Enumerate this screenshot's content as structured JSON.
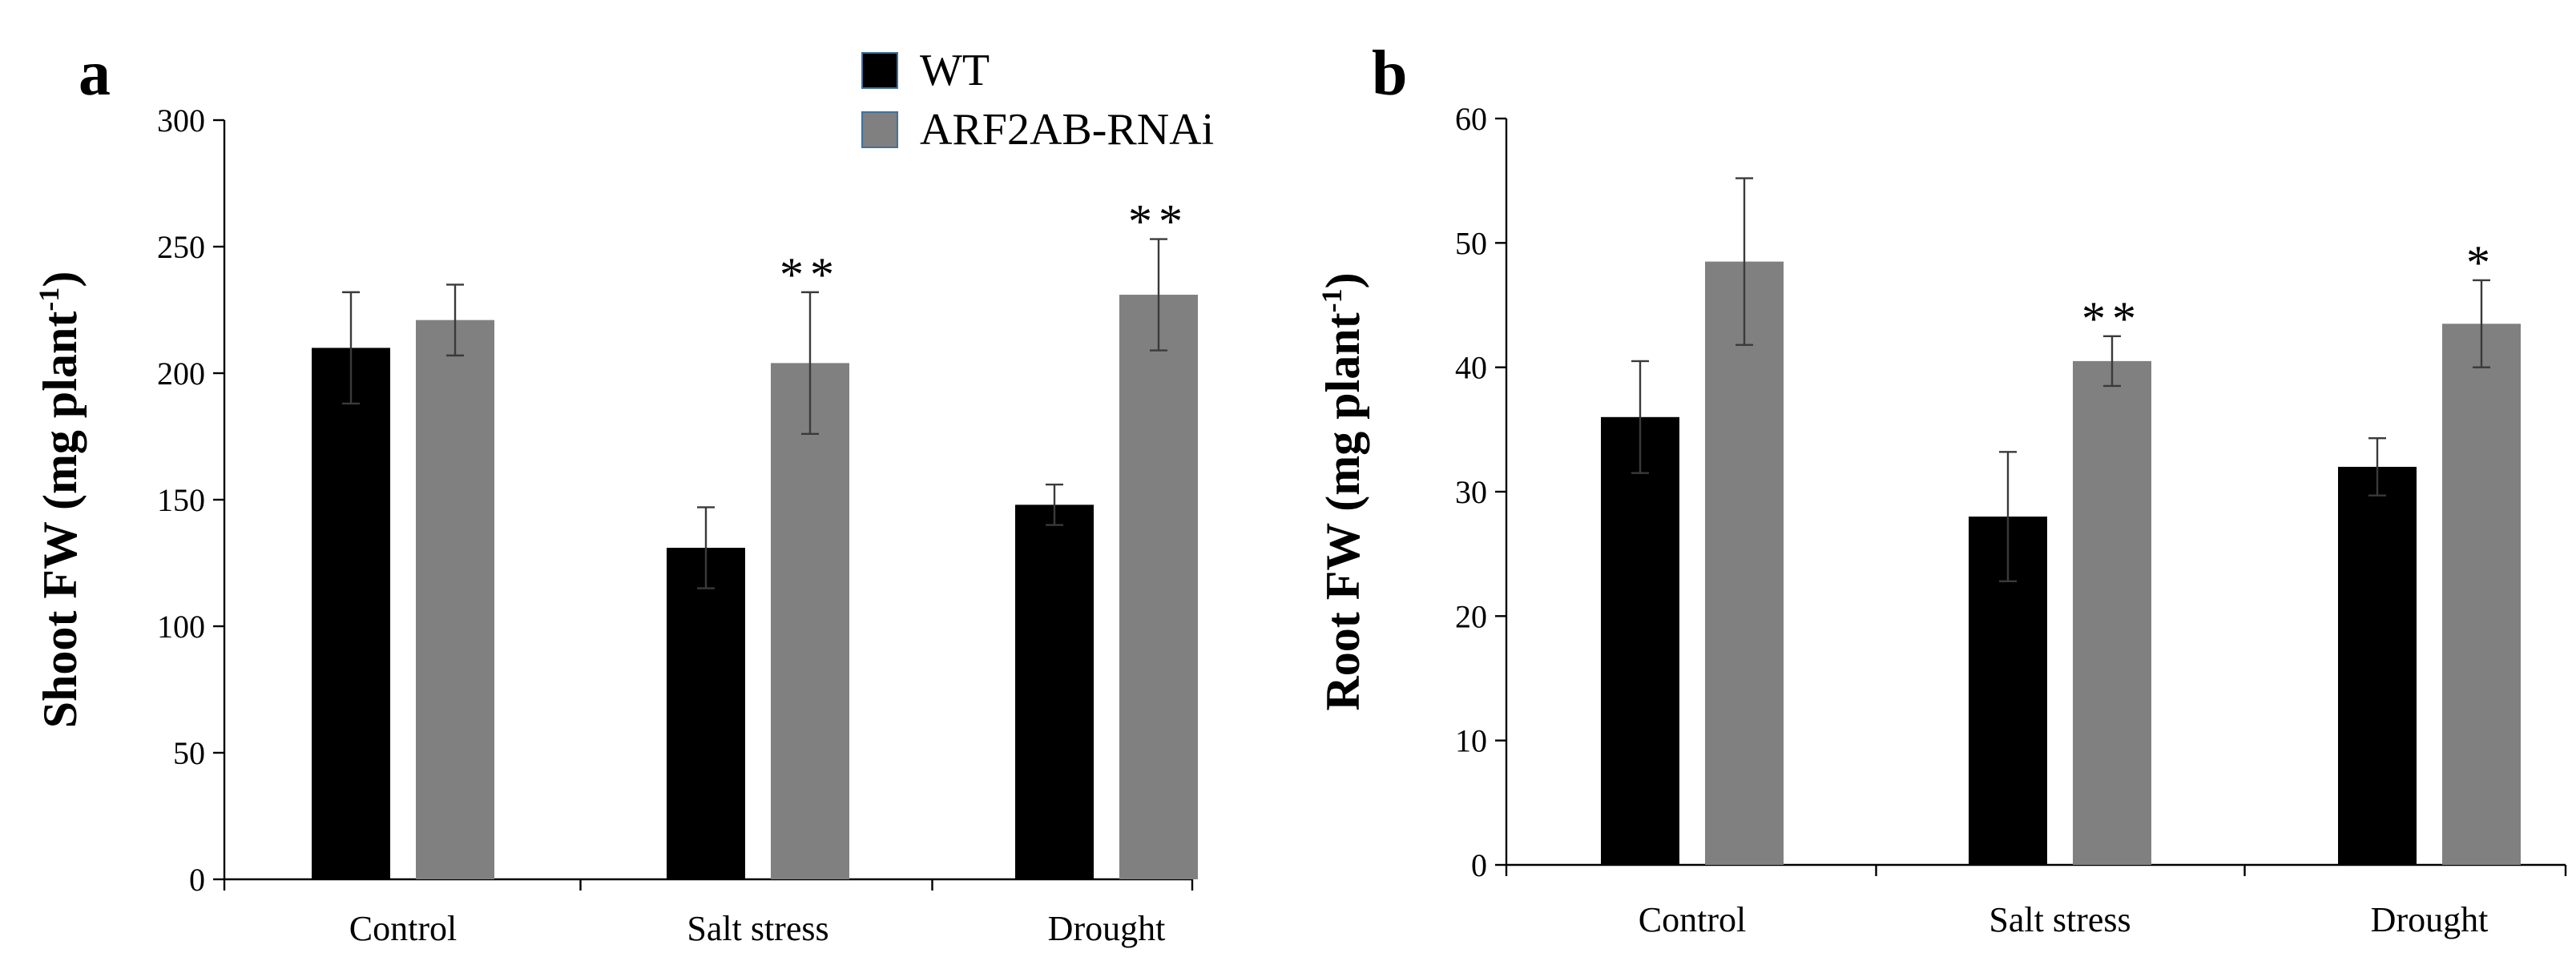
{
  "colors": {
    "WT": "#000000",
    "ARF2AB-RNAi": "#808080",
    "legend_border": "#41719c"
  },
  "legend": [
    {
      "name": "WT",
      "color": "#000000"
    },
    {
      "name": "ARF2AB-RNAi",
      "color": "#808080"
    }
  ],
  "chart_data": [
    {
      "type": "bar",
      "panel_label": "a",
      "title": "",
      "xlabel": "",
      "ylabel": "Shoot FW (mg plant",
      "ylabel_sup": "-1",
      "ylabel_close": ")",
      "ylim": [
        0,
        300
      ],
      "yticks": [
        0,
        50,
        100,
        150,
        200,
        250,
        300
      ],
      "grid": false,
      "categories": [
        "Control",
        "Salt stress",
        "Drought"
      ],
      "series": [
        {
          "name": "WT",
          "values": [
            210,
            131,
            148
          ],
          "errors": [
            22,
            16,
            8
          ],
          "significance": [
            "",
            "",
            ""
          ]
        },
        {
          "name": "ARF2AB-RNAi",
          "values": [
            221,
            204,
            231
          ],
          "errors": [
            14,
            28,
            22
          ],
          "significance": [
            "",
            "**",
            "**"
          ]
        }
      ]
    },
    {
      "type": "bar",
      "panel_label": "b",
      "title": "",
      "xlabel": "",
      "ylabel": "Root FW (mg plant",
      "ylabel_sup": "-1",
      "ylabel_close": ")",
      "ylim": [
        0,
        60
      ],
      "yticks": [
        0,
        10,
        20,
        30,
        40,
        50,
        60
      ],
      "grid": false,
      "categories": [
        "Control",
        "Salt stress",
        "Drought"
      ],
      "series": [
        {
          "name": "WT",
          "values": [
            36,
            28,
            32
          ],
          "errors": [
            4.5,
            5.2,
            2.3
          ],
          "significance": [
            "",
            "",
            ""
          ]
        },
        {
          "name": "ARF2AB-RNAi",
          "values": [
            48.5,
            40.5,
            43.5
          ],
          "errors": [
            6.7,
            2.0,
            3.5
          ],
          "significance": [
            "",
            "**",
            "*"
          ]
        }
      ]
    }
  ]
}
